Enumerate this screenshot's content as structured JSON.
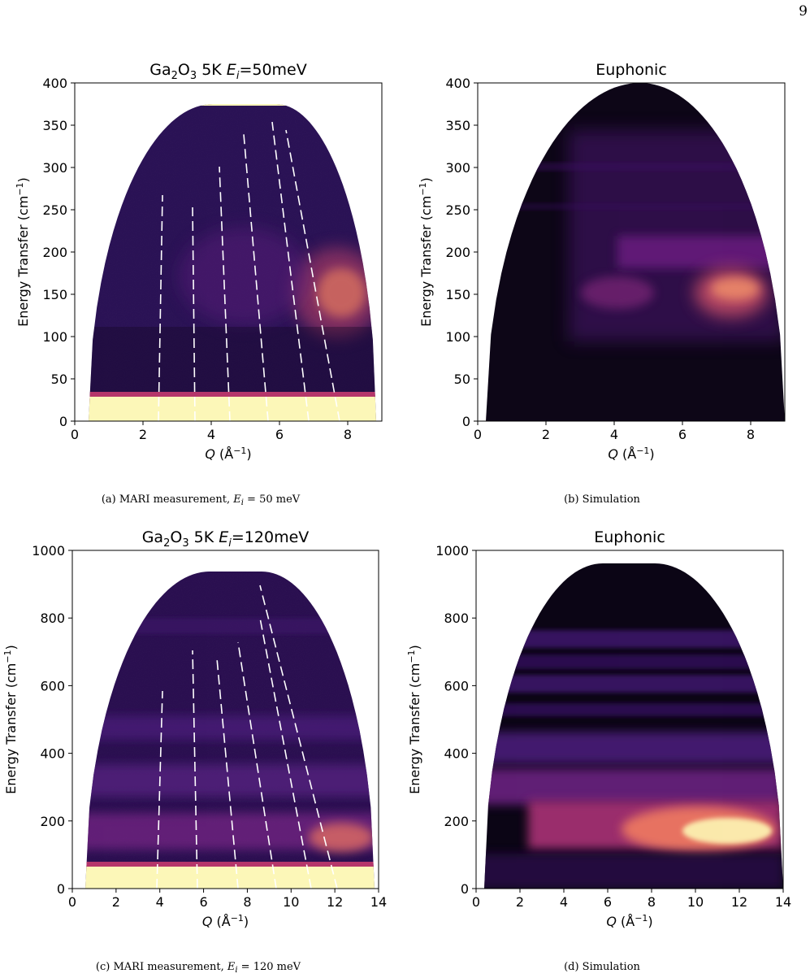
{
  "page_number": "9",
  "chart_data": [
    {
      "type": "heatmap",
      "title_parts": {
        "compound": "Ga",
        "sub1": "2",
        "mid": "O",
        "sub2": "3",
        "rest": " 5K ",
        "var": "E",
        "var_sub": "i",
        "suffix": "=50meV"
      },
      "xlabel": {
        "var": "Q",
        "unit_prefix": " (Å",
        "unit_sup": "−1",
        "unit_suffix": ")"
      },
      "ylabel": {
        "text": "Energy Transfer (cm",
        "sup": "−1",
        "suffix": ")"
      },
      "xlim": [
        0,
        9
      ],
      "ylim": [
        0,
        400
      ],
      "xticks": [
        "0",
        "2",
        "4",
        "6",
        "8"
      ],
      "xtick_values": [
        0,
        2,
        4,
        6,
        8
      ],
      "yticks": [
        "0",
        "50",
        "100",
        "150",
        "200",
        "250",
        "300",
        "350",
        "400"
      ],
      "ytick_values": [
        0,
        50,
        100,
        150,
        200,
        250,
        300,
        350,
        400
      ],
      "colormap": "magma",
      "caption_parts": {
        "label": "(a) MARI measurement, ",
        "var": "E",
        "sub": "i",
        "rest": " = 50 meV"
      }
    },
    {
      "type": "heatmap",
      "title": "Euphonic",
      "xlabel": {
        "var": "Q",
        "unit_prefix": " (Å",
        "unit_sup": "−1",
        "unit_suffix": ")"
      },
      "ylabel": {
        "text": "Energy Transfer (cm",
        "sup": "−1",
        "suffix": ")"
      },
      "xlim": [
        0,
        9
      ],
      "ylim": [
        0,
        400
      ],
      "xticks": [
        "0",
        "2",
        "4",
        "6",
        "8"
      ],
      "xtick_values": [
        0,
        2,
        4,
        6,
        8
      ],
      "yticks": [
        "0",
        "50",
        "100",
        "150",
        "200",
        "250",
        "300",
        "350",
        "400"
      ],
      "ytick_values": [
        0,
        50,
        100,
        150,
        200,
        250,
        300,
        350,
        400
      ],
      "colormap": "magma",
      "caption": "(b) Simulation"
    },
    {
      "type": "heatmap",
      "title_parts": {
        "compound": "Ga",
        "sub1": "2",
        "mid": "O",
        "sub2": "3",
        "rest": " 5K ",
        "var": "E",
        "var_sub": "i",
        "suffix": "=120meV"
      },
      "xlabel": {
        "var": "Q",
        "unit_prefix": " (Å",
        "unit_sup": "−1",
        "unit_suffix": ")"
      },
      "ylabel": {
        "text": "Energy Transfer (cm",
        "sup": "−1",
        "suffix": ")"
      },
      "xlim": [
        0,
        14
      ],
      "ylim": [
        0,
        1000
      ],
      "xticks": [
        "0",
        "2",
        "4",
        "6",
        "8",
        "10",
        "12",
        "14"
      ],
      "xtick_values": [
        0,
        2,
        4,
        6,
        8,
        10,
        12,
        14
      ],
      "yticks": [
        "0",
        "200",
        "400",
        "600",
        "800",
        "1000"
      ],
      "ytick_values": [
        0,
        200,
        400,
        600,
        800,
        1000
      ],
      "colormap": "magma",
      "caption_parts": {
        "label": "(c) MARI measurement, ",
        "var": "E",
        "sub": "i",
        "rest": " = 120 meV"
      }
    },
    {
      "type": "heatmap",
      "title": "Euphonic",
      "xlabel": {
        "var": "Q",
        "unit_prefix": " (Å",
        "unit_sup": "−1",
        "unit_suffix": ")"
      },
      "ylabel": {
        "text": "Energy Transfer (cm",
        "sup": "−1",
        "suffix": ")"
      },
      "xlim": [
        0,
        14
      ],
      "ylim": [
        0,
        1000
      ],
      "xticks": [
        "0",
        "2",
        "4",
        "6",
        "8",
        "10",
        "12",
        "14"
      ],
      "xtick_values": [
        0,
        2,
        4,
        6,
        8,
        10,
        12,
        14
      ],
      "yticks": [
        "0",
        "200",
        "400",
        "600",
        "800",
        "1000"
      ],
      "ytick_values": [
        0,
        200,
        400,
        600,
        800,
        1000
      ],
      "colormap": "magma",
      "caption": "(d) Simulation"
    }
  ]
}
